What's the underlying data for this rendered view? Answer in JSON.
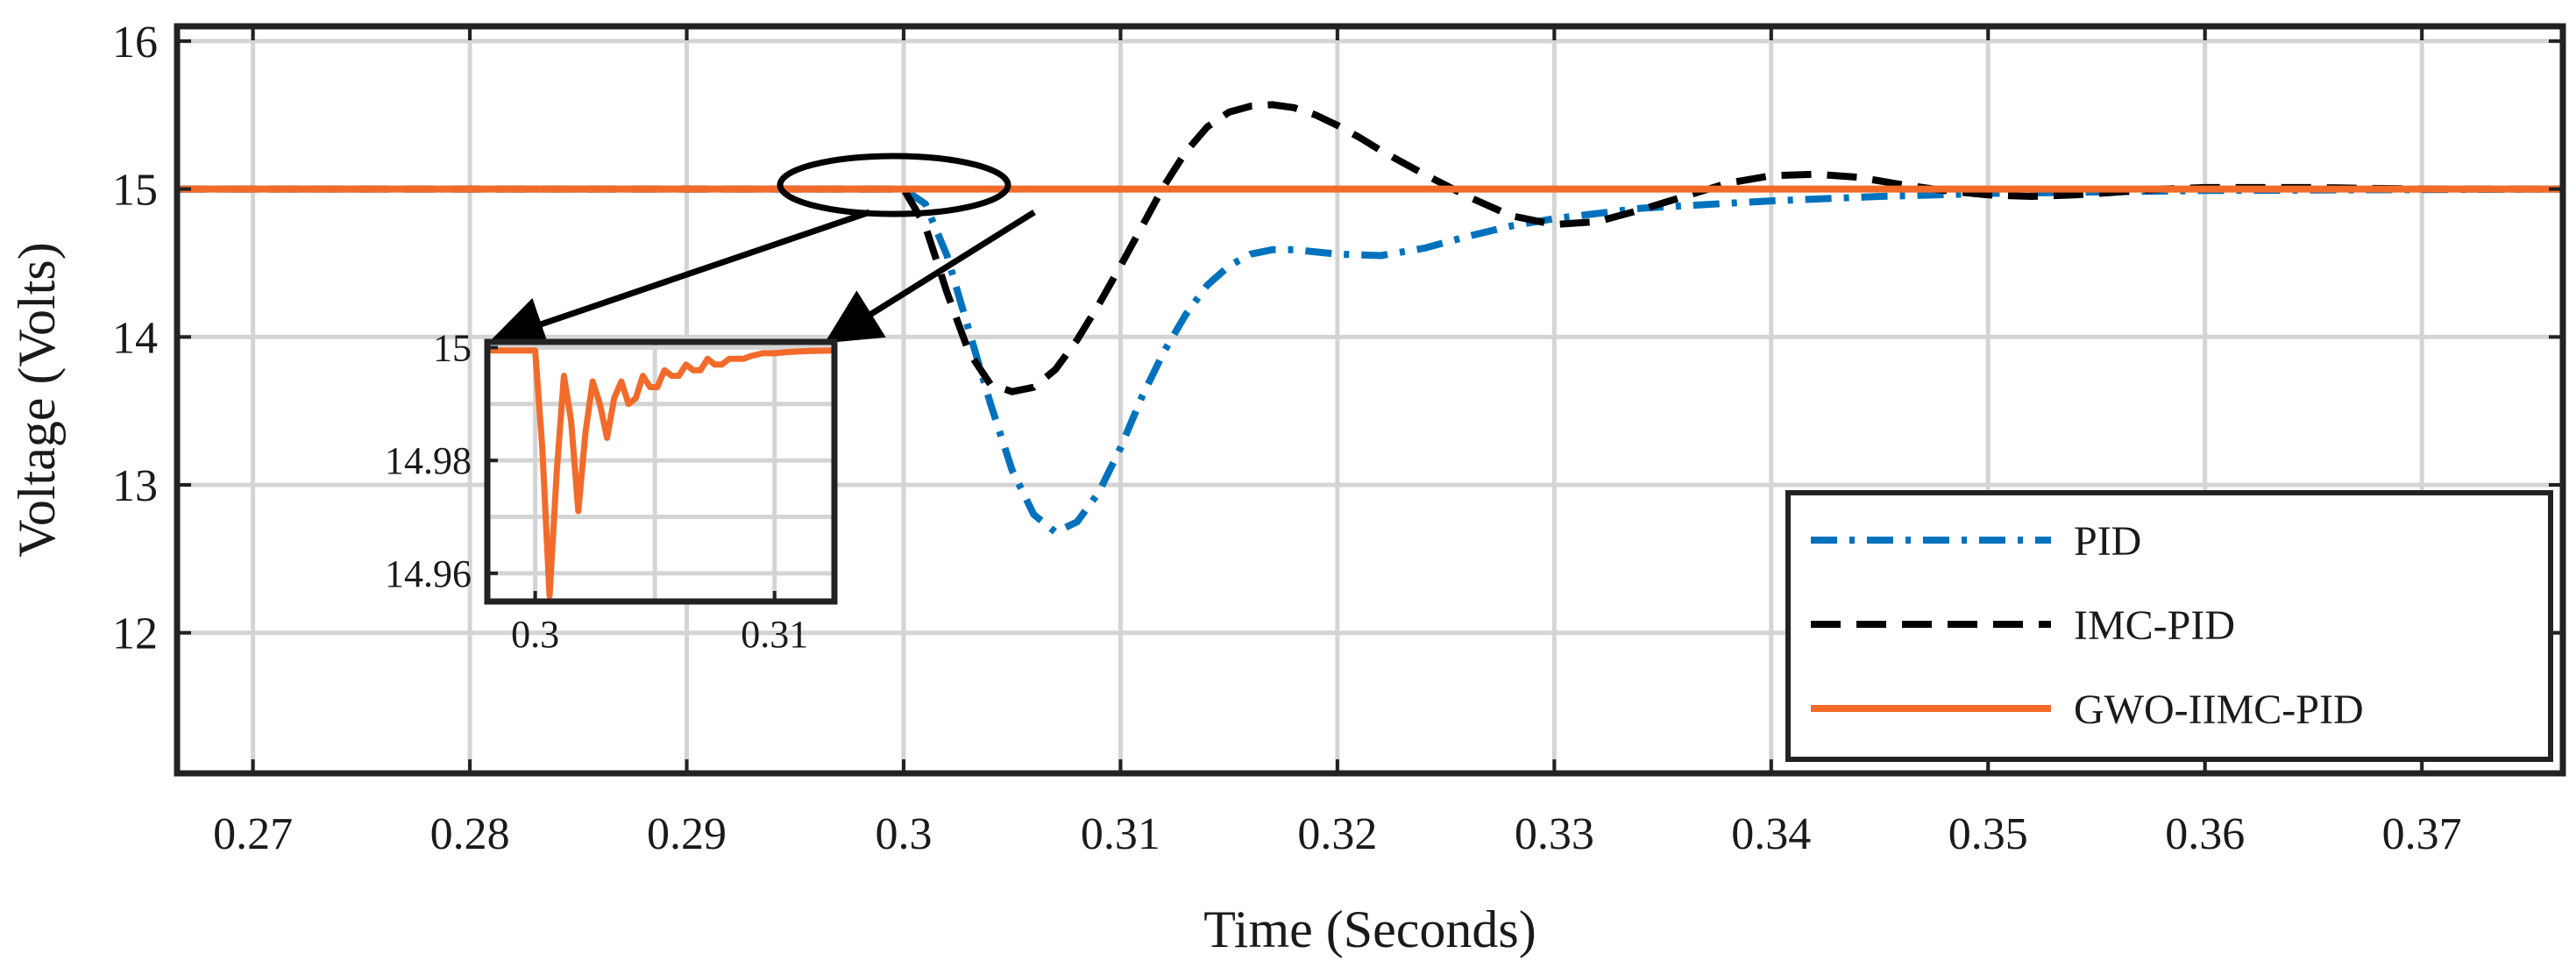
{
  "chart_data": {
    "type": "line",
    "title": "",
    "xlabel": "Time (Seconds)",
    "ylabel": "Voltage (Volts)",
    "xlim": [
      0.2665,
      0.3765
    ],
    "ylim": [
      11.05,
      16.1
    ],
    "xticks": [
      0.27,
      0.28,
      0.29,
      0.3,
      0.31,
      0.32,
      0.33,
      0.34,
      0.35,
      0.36,
      0.37
    ],
    "xtick_labels": [
      "0.27",
      "0.28",
      "0.29",
      "0.3",
      "0.31",
      "0.32",
      "0.33",
      "0.34",
      "0.35",
      "0.36",
      "0.37"
    ],
    "yticks": [
      12,
      13,
      14,
      15,
      16
    ],
    "ytick_labels": [
      "12",
      "13",
      "14",
      "15",
      "16"
    ],
    "grid": true,
    "legend_position": "bottom-right",
    "series": [
      {
        "name": "PID",
        "color": "#0072BD",
        "dash": "dash-dot",
        "x": [
          0.2665,
          0.3,
          0.301,
          0.302,
          0.303,
          0.304,
          0.305,
          0.306,
          0.307,
          0.308,
          0.309,
          0.31,
          0.311,
          0.312,
          0.313,
          0.314,
          0.315,
          0.316,
          0.317,
          0.318,
          0.32,
          0.322,
          0.324,
          0.326,
          0.328,
          0.33,
          0.334,
          0.34,
          0.345,
          0.35,
          0.36,
          0.3765
        ],
        "y": [
          15.0,
          15.0,
          14.9,
          14.55,
          14.05,
          13.55,
          13.1,
          12.8,
          12.68,
          12.75,
          12.95,
          13.25,
          13.6,
          13.9,
          14.15,
          14.35,
          14.48,
          14.56,
          14.59,
          14.59,
          14.56,
          14.55,
          14.6,
          14.68,
          14.75,
          14.8,
          14.87,
          14.92,
          14.95,
          14.97,
          14.99,
          15.0
        ]
      },
      {
        "name": "IMC-PID",
        "color": "#000000",
        "dash": "dashed",
        "x": [
          0.2665,
          0.3,
          0.301,
          0.302,
          0.303,
          0.304,
          0.305,
          0.306,
          0.307,
          0.308,
          0.309,
          0.31,
          0.311,
          0.312,
          0.313,
          0.314,
          0.315,
          0.316,
          0.317,
          0.318,
          0.319,
          0.32,
          0.321,
          0.322,
          0.323,
          0.324,
          0.326,
          0.328,
          0.33,
          0.332,
          0.334,
          0.336,
          0.338,
          0.34,
          0.342,
          0.344,
          0.346,
          0.348,
          0.35,
          0.352,
          0.354,
          0.356,
          0.358,
          0.36,
          0.365,
          0.37,
          0.3765
        ],
        "y": [
          15.0,
          15.0,
          14.75,
          14.3,
          13.9,
          13.68,
          13.63,
          13.66,
          13.78,
          13.98,
          14.22,
          14.48,
          14.75,
          15.02,
          15.25,
          15.42,
          15.52,
          15.56,
          15.57,
          15.55,
          15.5,
          15.43,
          15.35,
          15.26,
          15.18,
          15.1,
          14.95,
          14.82,
          14.76,
          14.78,
          14.86,
          14.95,
          15.04,
          15.09,
          15.1,
          15.08,
          15.03,
          14.99,
          14.96,
          14.95,
          14.96,
          14.98,
          15.0,
          15.01,
          15.01,
          15.0,
          15.0
        ]
      },
      {
        "name": "GWO-IIMC-PID",
        "color": "#F26B2A",
        "dash": "solid",
        "x": [
          0.2665,
          0.3765
        ],
        "y": [
          15.0,
          15.0
        ]
      }
    ],
    "inset": {
      "xlim": [
        0.298,
        0.3125
      ],
      "ylim": [
        14.955,
        15.001
      ],
      "xticks": [
        0.3,
        0.31
      ],
      "xtick_labels": [
        "0.3",
        "0.31"
      ],
      "yticks": [
        14.96,
        14.98,
        15
      ],
      "ytick_labels": [
        "14.96",
        "14.98",
        "15"
      ],
      "series": [
        {
          "name": "GWO-IIMC-PID",
          "color": "#F26B2A",
          "x": [
            0.298,
            0.3,
            0.3003,
            0.3006,
            0.3009,
            0.3012,
            0.3015,
            0.3018,
            0.3021,
            0.3024,
            0.3027,
            0.303,
            0.3033,
            0.3036,
            0.3039,
            0.3042,
            0.3045,
            0.3048,
            0.3051,
            0.3054,
            0.3057,
            0.306,
            0.3063,
            0.3066,
            0.3069,
            0.3072,
            0.3075,
            0.3078,
            0.3081,
            0.3084,
            0.3087,
            0.309,
            0.3095,
            0.31,
            0.3105,
            0.311,
            0.3115,
            0.3125
          ],
          "y": [
            14.9995,
            14.9995,
            14.982,
            14.956,
            14.978,
            14.995,
            14.987,
            14.971,
            14.985,
            14.994,
            14.99,
            14.984,
            14.991,
            14.994,
            14.99,
            14.991,
            14.995,
            14.993,
            14.993,
            14.996,
            14.995,
            14.995,
            14.997,
            14.996,
            14.996,
            14.998,
            14.997,
            14.997,
            14.998,
            14.998,
            14.998,
            14.9985,
            14.999,
            14.999,
            14.9992,
            14.9993,
            14.9994,
            14.9995
          ]
        }
      ]
    }
  }
}
